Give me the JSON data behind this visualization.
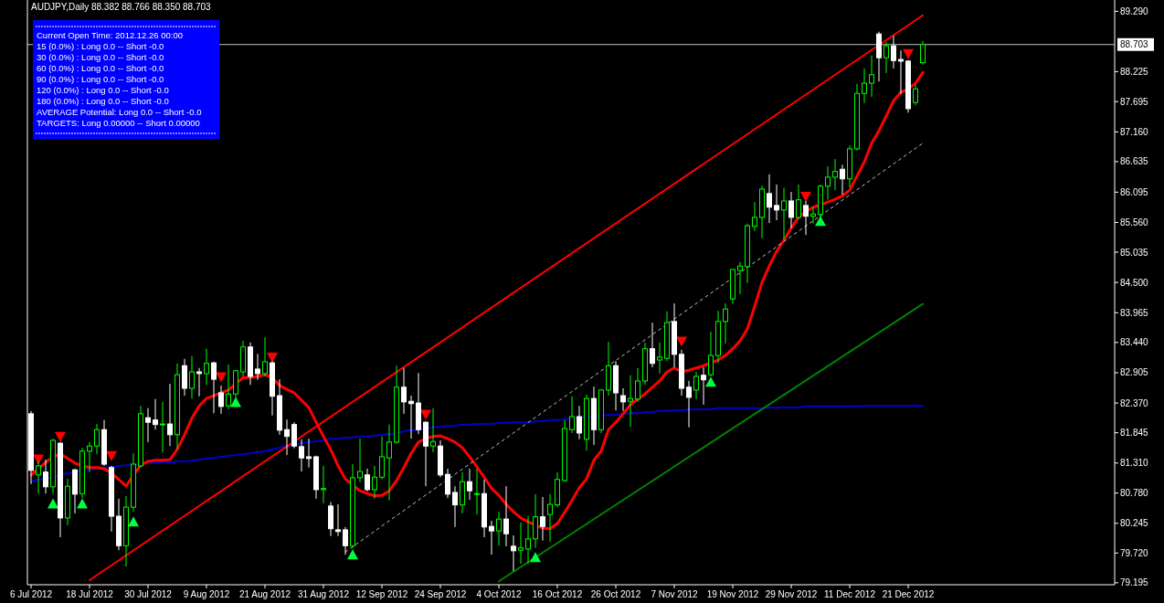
{
  "chart_data": {
    "type": "candlestick",
    "title": "AUDJPY,Daily  88.382 88.766 88.350 88.703",
    "categories": [
      "6 Jul 2012",
      null,
      null,
      null,
      null,
      null,
      null,
      null,
      "18 Jul 2012",
      null,
      null,
      null,
      null,
      null,
      null,
      null,
      "30 Jul 2012",
      null,
      null,
      null,
      null,
      null,
      null,
      null,
      "9 Aug 2012",
      null,
      null,
      null,
      null,
      null,
      null,
      null,
      "21 Aug 2012",
      null,
      null,
      null,
      null,
      null,
      null,
      null,
      "31 Aug 2012",
      null,
      null,
      null,
      null,
      null,
      null,
      null,
      "12 Sep 2012",
      null,
      null,
      null,
      null,
      null,
      null,
      null,
      "24 Sep 2012",
      null,
      null,
      null,
      null,
      null,
      null,
      null,
      "4 Oct 2012",
      null,
      null,
      null,
      null,
      null,
      null,
      null,
      "16 Oct 2012",
      null,
      null,
      null,
      null,
      null,
      null,
      null,
      "26 Oct 2012",
      null,
      null,
      null,
      null,
      null,
      null,
      null,
      "7 Nov 2012",
      null,
      null,
      null,
      null,
      null,
      null,
      null,
      "19 Nov 2012",
      null,
      null,
      null,
      null,
      null,
      null,
      null,
      "29 Nov 2012",
      null,
      null,
      null,
      null,
      null,
      null,
      null,
      "11 Dec 2012",
      null,
      null,
      null,
      null,
      null,
      null,
      null,
      "21 Dec 2012",
      null,
      null
    ],
    "ohlc": [
      [
        82.18,
        82.23,
        80.94,
        81.18
      ],
      [
        81.1,
        81.34,
        80.77,
        81.26
      ],
      [
        81.15,
        81.37,
        80.77,
        80.89
      ],
      [
        80.89,
        81.74,
        80.77,
        81.71
      ],
      [
        81.66,
        81.68,
        80.0,
        80.34
      ],
      [
        80.34,
        81.03,
        80.21,
        80.9
      ],
      [
        81.19,
        81.21,
        80.42,
        80.76
      ],
      [
        80.77,
        81.58,
        80.69,
        81.52
      ],
      [
        81.52,
        81.68,
        81.15,
        81.61
      ],
      [
        81.61,
        82.0,
        81.47,
        81.9
      ],
      [
        81.9,
        82.07,
        81.26,
        81.29
      ],
      [
        81.23,
        81.26,
        80.1,
        80.37
      ],
      [
        80.37,
        80.68,
        79.77,
        79.85
      ],
      [
        79.85,
        80.73,
        79.48,
        80.53
      ],
      [
        80.53,
        81.48,
        80.45,
        81.29
      ],
      [
        81.26,
        82.32,
        81.23,
        82.18
      ],
      [
        82.11,
        82.28,
        81.68,
        82.03
      ],
      [
        82.07,
        82.44,
        81.9,
        81.99
      ],
      [
        81.99,
        82.39,
        81.5,
        82.0
      ],
      [
        82.0,
        82.71,
        81.61,
        81.81
      ],
      [
        81.81,
        83.07,
        81.55,
        82.87
      ],
      [
        83.03,
        83.15,
        82.5,
        82.63
      ],
      [
        82.63,
        83.2,
        82.45,
        82.92
      ],
      [
        82.92,
        82.99,
        82.49,
        82.89
      ],
      [
        82.89,
        83.33,
        82.69,
        83.07
      ],
      [
        83.08,
        83.1,
        82.19,
        82.79
      ],
      [
        82.55,
        82.68,
        82.18,
        82.31
      ],
      [
        82.32,
        83.05,
        82.26,
        82.53
      ],
      [
        82.53,
        82.95,
        82.45,
        82.94
      ],
      [
        82.92,
        83.47,
        82.84,
        83.36
      ],
      [
        83.36,
        83.44,
        82.69,
        82.84
      ],
      [
        82.97,
        83.24,
        82.78,
        82.89
      ],
      [
        82.89,
        83.53,
        82.84,
        83.1
      ],
      [
        83.08,
        83.11,
        82.15,
        82.49
      ],
      [
        82.5,
        82.79,
        81.81,
        81.89
      ],
      [
        81.9,
        82.08,
        81.45,
        81.78
      ],
      [
        81.99,
        82.03,
        81.57,
        81.61
      ],
      [
        81.6,
        81.73,
        81.16,
        81.4
      ],
      [
        81.42,
        81.74,
        81.23,
        81.39
      ],
      [
        81.42,
        81.44,
        80.68,
        80.84
      ],
      [
        80.84,
        81.26,
        80.6,
        80.86
      ],
      [
        80.55,
        80.62,
        80.02,
        80.15
      ],
      [
        80.13,
        80.58,
        80.02,
        80.1
      ],
      [
        80.13,
        80.18,
        79.69,
        79.85
      ],
      [
        79.85,
        81.29,
        79.81,
        81.05
      ],
      [
        81.05,
        81.74,
        80.97,
        81.16
      ],
      [
        81.1,
        81.21,
        80.81,
        80.84
      ],
      [
        80.84,
        81.26,
        80.68,
        81.06
      ],
      [
        81.06,
        81.78,
        81.02,
        81.42
      ],
      [
        81.4,
        81.99,
        80.65,
        81.68
      ],
      [
        81.68,
        83.03,
        81.65,
        82.65
      ],
      [
        82.65,
        82.99,
        82.18,
        82.39
      ],
      [
        82.4,
        82.5,
        81.74,
        82.36
      ],
      [
        82.37,
        82.9,
        81.82,
        81.9
      ],
      [
        82.03,
        82.05,
        80.9,
        81.61
      ],
      [
        81.61,
        82.28,
        81.5,
        81.69
      ],
      [
        81.61,
        81.71,
        81.06,
        81.1
      ],
      [
        81.11,
        81.21,
        80.69,
        80.76
      ],
      [
        80.79,
        80.9,
        80.18,
        80.57
      ],
      [
        80.57,
        81.15,
        80.42,
        80.98
      ],
      [
        80.98,
        81.21,
        80.66,
        80.82
      ],
      [
        80.76,
        81.21,
        80.4,
        80.77
      ],
      [
        80.77,
        81.02,
        80.0,
        80.18
      ],
      [
        80.19,
        80.29,
        79.69,
        80.11
      ],
      [
        80.11,
        80.45,
        79.85,
        80.32
      ],
      [
        80.32,
        80.9,
        79.84,
        80.06
      ],
      [
        79.84,
        80.03,
        79.4,
        79.76
      ],
      [
        79.77,
        80.26,
        79.53,
        79.81
      ],
      [
        79.79,
        80.37,
        79.53,
        79.97
      ],
      [
        79.97,
        80.76,
        79.81,
        80.36
      ],
      [
        80.36,
        80.71,
        79.94,
        80.19
      ],
      [
        80.4,
        80.76,
        79.92,
        80.58
      ],
      [
        80.57,
        81.15,
        80.53,
        81.02
      ],
      [
        81.0,
        82.07,
        80.98,
        81.92
      ],
      [
        81.9,
        82.49,
        81.84,
        82.13
      ],
      [
        82.13,
        82.32,
        81.73,
        81.84
      ],
      [
        81.73,
        82.52,
        81.53,
        82.45
      ],
      [
        82.45,
        82.66,
        81.63,
        81.9
      ],
      [
        81.9,
        82.61,
        81.84,
        82.6
      ],
      [
        82.6,
        83.45,
        82.5,
        83.03
      ],
      [
        83.03,
        83.11,
        82.24,
        82.55
      ],
      [
        82.5,
        82.63,
        82.23,
        82.39
      ],
      [
        82.4,
        82.86,
        81.95,
        82.45
      ],
      [
        82.44,
        82.99,
        82.39,
        82.76
      ],
      [
        82.76,
        83.44,
        82.69,
        83.33
      ],
      [
        83.33,
        83.79,
        83.0,
        83.07
      ],
      [
        83.13,
        83.44,
        82.89,
        83.18
      ],
      [
        83.16,
        83.99,
        83.11,
        83.79
      ],
      [
        83.81,
        84.13,
        83.0,
        83.23
      ],
      [
        83.23,
        83.31,
        82.5,
        82.63
      ],
      [
        82.65,
        82.76,
        81.94,
        82.47
      ],
      [
        82.6,
        82.92,
        82.44,
        82.84
      ],
      [
        82.86,
        83.0,
        82.34,
        82.78
      ],
      [
        82.87,
        83.63,
        82.84,
        83.21
      ],
      [
        83.21,
        84.0,
        83.08,
        83.81
      ],
      [
        83.81,
        84.13,
        83.42,
        84.03
      ],
      [
        84.21,
        84.73,
        84.12,
        84.73
      ],
      [
        84.71,
        84.86,
        84.29,
        84.79
      ],
      [
        84.78,
        85.54,
        84.49,
        85.5
      ],
      [
        85.49,
        85.92,
        85.41,
        85.65
      ],
      [
        85.65,
        86.21,
        85.28,
        86.15
      ],
      [
        86.07,
        86.41,
        85.55,
        85.83
      ],
      [
        85.86,
        86.23,
        85.6,
        85.78
      ],
      [
        85.78,
        86.17,
        85.26,
        85.94
      ],
      [
        85.94,
        86.1,
        85.46,
        85.65
      ],
      [
        85.65,
        86.23,
        85.62,
        85.96
      ],
      [
        85.86,
        85.94,
        85.34,
        85.67
      ],
      [
        85.67,
        85.83,
        85.54,
        85.71
      ],
      [
        85.7,
        86.23,
        85.54,
        86.2
      ],
      [
        86.2,
        86.55,
        85.96,
        86.36
      ],
      [
        86.36,
        86.68,
        86.13,
        86.46
      ],
      [
        86.5,
        86.58,
        86.05,
        86.33
      ],
      [
        86.33,
        86.92,
        86.18,
        86.86
      ],
      [
        86.86,
        88.01,
        86.83,
        87.84
      ],
      [
        87.84,
        88.28,
        87.67,
        88.02
      ],
      [
        88.02,
        88.51,
        87.78,
        88.17
      ],
      [
        88.89,
        88.93,
        88.05,
        88.47
      ],
      [
        88.47,
        88.75,
        88.2,
        88.68
      ],
      [
        88.68,
        88.86,
        88.28,
        88.42
      ],
      [
        88.44,
        88.6,
        87.83,
        88.41
      ],
      [
        88.41,
        88.43,
        87.5,
        87.57
      ],
      [
        87.68,
        87.99,
        87.63,
        87.92
      ],
      [
        88.382,
        88.766,
        88.35,
        88.703
      ]
    ],
    "series": [
      {
        "type": "line",
        "color": "#0000cd",
        "values": [
          80.98,
          81.02,
          81.03,
          81.06,
          81.1,
          81.13,
          81.15,
          81.18,
          81.19,
          81.21,
          81.23,
          81.24,
          81.26,
          81.27,
          81.29,
          81.29,
          81.31,
          81.31,
          81.32,
          81.32,
          81.34,
          81.34,
          81.35,
          81.37,
          81.39,
          81.4,
          81.42,
          81.44,
          81.45,
          81.47,
          81.48,
          81.5,
          81.52,
          81.55,
          81.58,
          81.61,
          81.63,
          81.66,
          81.68,
          81.69,
          81.71,
          81.74,
          81.74,
          81.76,
          81.76,
          81.78,
          81.78,
          81.79,
          81.81,
          81.82,
          81.84,
          81.87,
          81.89,
          81.9,
          81.92,
          81.94,
          81.95,
          81.97,
          81.97,
          81.99,
          81.99,
          82.0,
          82.0,
          82.0,
          82.02,
          82.02,
          82.03,
          82.03,
          82.03,
          82.05,
          82.05,
          82.07,
          82.07,
          82.08,
          82.1,
          82.11,
          82.13,
          82.13,
          82.15,
          82.16,
          82.16,
          82.18,
          82.19,
          82.19,
          82.21,
          82.21,
          82.23,
          82.23,
          82.24,
          82.24,
          82.26,
          82.26,
          82.26,
          82.26,
          82.28,
          82.28,
          82.28,
          82.28,
          82.28,
          82.28,
          82.28,
          82.29,
          82.29,
          82.29,
          82.29,
          82.29,
          82.31,
          82.31,
          82.31,
          82.31,
          82.31,
          82.31,
          82.31,
          82.31,
          82.32,
          82.32,
          82.32,
          82.32,
          82.32,
          82.32,
          82.32,
          82.32,
          82.32
        ]
      },
      {
        "type": "line",
        "color": "#ff0000",
        "values": [
          81.1,
          81.21,
          81.32,
          81.42,
          81.47,
          81.39,
          81.31,
          81.26,
          81.23,
          81.23,
          81.21,
          81.13,
          81.02,
          80.9,
          81.1,
          81.27,
          81.34,
          81.36,
          81.36,
          81.37,
          81.55,
          81.81,
          82.1,
          82.32,
          82.45,
          82.5,
          82.55,
          82.6,
          82.71,
          82.82,
          82.82,
          82.84,
          82.87,
          82.82,
          82.68,
          82.61,
          82.55,
          82.42,
          82.29,
          82.03,
          81.78,
          81.55,
          81.26,
          81.03,
          80.92,
          80.82,
          80.77,
          80.73,
          80.74,
          80.82,
          81.0,
          81.23,
          81.48,
          81.68,
          81.74,
          81.78,
          81.79,
          81.74,
          81.68,
          81.58,
          81.42,
          81.24,
          81.06,
          80.86,
          80.74,
          80.58,
          80.45,
          80.34,
          80.27,
          80.21,
          80.16,
          80.15,
          80.24,
          80.44,
          80.65,
          80.87,
          81.03,
          81.36,
          81.52,
          81.9,
          82.03,
          82.18,
          82.34,
          82.44,
          82.53,
          82.65,
          82.76,
          82.92,
          82.99,
          82.92,
          82.95,
          82.99,
          83.03,
          83.08,
          83.13,
          83.21,
          83.33,
          83.47,
          83.68,
          84.08,
          84.5,
          84.79,
          85.05,
          85.25,
          85.46,
          85.65,
          85.75,
          85.83,
          85.87,
          85.92,
          85.97,
          86.03,
          86.13,
          86.38,
          86.63,
          86.96,
          87.18,
          87.44,
          87.71,
          87.86,
          87.92,
          88.02,
          88.21
        ]
      },
      {
        "type": "line",
        "color": "#ff0000",
        "values": [
          null,
          null,
          null,
          null,
          null,
          null,
          null,
          null,
          79.24,
          null,
          null,
          null,
          null,
          null,
          null,
          null,
          null,
          null,
          null,
          null,
          null,
          null,
          null,
          null,
          null,
          null,
          null,
          null,
          null,
          null,
          null,
          null,
          null,
          null,
          null,
          null,
          null,
          null,
          null,
          null,
          null,
          null,
          null,
          null,
          null,
          null,
          null,
          null,
          null,
          null,
          null,
          null,
          null,
          null,
          null,
          null,
          null,
          null,
          null,
          null,
          null,
          null,
          null,
          null,
          null,
          null,
          null,
          null,
          null,
          null,
          null,
          null,
          null,
          null,
          null,
          null,
          null,
          null,
          null,
          null,
          null,
          null,
          null,
          null,
          null,
          null,
          null,
          null,
          null,
          null,
          null,
          null,
          null,
          null,
          null,
          null,
          null,
          null,
          null,
          null,
          null,
          null,
          null,
          null,
          null,
          null,
          null,
          null,
          null,
          null,
          null,
          null,
          null,
          null,
          null,
          null,
          null,
          null,
          null,
          null,
          null,
          null,
          89.22
        ]
      },
      {
        "type": "line",
        "color": "#c0c0c0",
        "line_style": "dashed",
        "values": [
          null,
          null,
          null,
          null,
          null,
          null,
          null,
          null,
          null,
          null,
          null,
          null,
          null,
          null,
          null,
          null,
          null,
          null,
          null,
          null,
          null,
          null,
          null,
          null,
          null,
          null,
          null,
          null,
          null,
          null,
          null,
          null,
          null,
          null,
          null,
          null,
          null,
          null,
          null,
          null,
          null,
          null,
          null,
          79.74,
          null,
          null,
          null,
          null,
          null,
          null,
          null,
          null,
          null,
          null,
          null,
          null,
          null,
          null,
          null,
          null,
          null,
          null,
          null,
          null,
          null,
          null,
          null,
          null,
          null,
          null,
          null,
          null,
          null,
          null,
          null,
          null,
          null,
          null,
          null,
          null,
          null,
          null,
          null,
          null,
          null,
          null,
          null,
          null,
          null,
          null,
          null,
          null,
          null,
          null,
          null,
          null,
          null,
          null,
          null,
          null,
          null,
          null,
          null,
          null,
          null,
          null,
          null,
          null,
          null,
          null,
          null,
          null,
          null,
          null,
          null,
          null,
          null,
          null,
          null,
          null,
          null,
          null,
          86.96
        ]
      },
      {
        "type": "line",
        "color": "#008000",
        "values": [
          null,
          null,
          null,
          null,
          null,
          null,
          null,
          null,
          null,
          null,
          null,
          null,
          null,
          null,
          null,
          null,
          null,
          null,
          null,
          null,
          null,
          null,
          null,
          null,
          null,
          null,
          null,
          null,
          null,
          null,
          null,
          null,
          null,
          null,
          null,
          null,
          null,
          null,
          null,
          null,
          null,
          null,
          null,
          null,
          null,
          null,
          null,
          null,
          null,
          null,
          null,
          null,
          null,
          null,
          null,
          null,
          null,
          null,
          null,
          null,
          null,
          null,
          null,
          null,
          79.22,
          null,
          null,
          null,
          null,
          null,
          null,
          null,
          null,
          null,
          null,
          null,
          null,
          null,
          null,
          null,
          null,
          null,
          null,
          null,
          null,
          null,
          null,
          null,
          null,
          null,
          null,
          null,
          null,
          null,
          null,
          null,
          null,
          null,
          null,
          null,
          null,
          null,
          null,
          null,
          null,
          null,
          null,
          null,
          null,
          null,
          null,
          null,
          null,
          null,
          null,
          null,
          null,
          null,
          null,
          null,
          null,
          null,
          84.12
        ]
      },
      {
        "type": "scatter",
        "color": "#ff0000",
        "marker": "triangle",
        "values": [
          null,
          81.38,
          null,
          null,
          81.78,
          null,
          null,
          null,
          null,
          null,
          null,
          81.44,
          null,
          null,
          null,
          null,
          null,
          null,
          null,
          null,
          null,
          null,
          null,
          null,
          null,
          null,
          82.83,
          null,
          null,
          null,
          null,
          null,
          null,
          83.18,
          null,
          null,
          null,
          null,
          null,
          null,
          null,
          null,
          null,
          null,
          null,
          null,
          null,
          null,
          null,
          null,
          null,
          null,
          null,
          null,
          82.17,
          null,
          null,
          null,
          null,
          null,
          null,
          null,
          null,
          null,
          null,
          null,
          null,
          null,
          null,
          null,
          null,
          null,
          null,
          null,
          null,
          null,
          null,
          null,
          null,
          null,
          null,
          null,
          null,
          null,
          null,
          null,
          null,
          null,
          null,
          83.46,
          null,
          null,
          null,
          null,
          null,
          null,
          null,
          null,
          null,
          null,
          null,
          null,
          null,
          null,
          null,
          null,
          86.02,
          null,
          null,
          null,
          null,
          null,
          null,
          null,
          null,
          null,
          null,
          null,
          null,
          null,
          88.54,
          null,
          null
        ]
      },
      {
        "type": "scatter",
        "color": "#00ff40",
        "marker": "triangle",
        "values": [
          null,
          null,
          null,
          80.59,
          null,
          null,
          null,
          80.59,
          null,
          null,
          null,
          null,
          null,
          null,
          80.27,
          null,
          null,
          null,
          null,
          null,
          null,
          null,
          null,
          null,
          null,
          null,
          null,
          null,
          82.38,
          null,
          null,
          null,
          null,
          null,
          null,
          null,
          null,
          null,
          null,
          null,
          null,
          null,
          null,
          null,
          79.69,
          null,
          null,
          null,
          null,
          null,
          null,
          null,
          null,
          null,
          null,
          null,
          null,
          null,
          null,
          null,
          null,
          null,
          null,
          null,
          null,
          null,
          null,
          null,
          null,
          79.64,
          null,
          null,
          null,
          null,
          null,
          null,
          null,
          null,
          null,
          null,
          null,
          null,
          null,
          null,
          null,
          null,
          null,
          null,
          null,
          null,
          null,
          null,
          null,
          82.74,
          null,
          null,
          null,
          null,
          null,
          null,
          null,
          null,
          null,
          null,
          null,
          null,
          null,
          null,
          85.58,
          null,
          null,
          null,
          null,
          null,
          null,
          null,
          null,
          null,
          null,
          null,
          null,
          null,
          null
        ]
      }
    ],
    "ylim": [
      79.16,
      89.49
    ],
    "yticks": [
      {
        "value": 79.195,
        "label": "79.195"
      },
      {
        "value": 79.72,
        "label": "79.720"
      },
      {
        "value": 80.245,
        "label": "80.245"
      },
      {
        "value": 80.78,
        "label": "80.780"
      },
      {
        "value": 81.31,
        "label": "81.310"
      },
      {
        "value": 81.845,
        "label": "81.845"
      },
      {
        "value": 82.37,
        "label": "82.370"
      },
      {
        "value": 82.905,
        "label": "82.905"
      },
      {
        "value": 83.44,
        "label": "83.440"
      },
      {
        "value": 83.965,
        "label": "83.965"
      },
      {
        "value": 84.5,
        "label": "84.500"
      },
      {
        "value": 85.035,
        "label": "85.035"
      },
      {
        "value": 85.56,
        "label": "85.560"
      },
      {
        "value": 86.095,
        "label": "86.095"
      },
      {
        "value": 86.635,
        "label": "86.635"
      },
      {
        "value": 87.16,
        "label": "87.160"
      },
      {
        "value": 87.695,
        "label": "87.695"
      },
      {
        "value": 88.225,
        "label": "88.225"
      },
      {
        "value": 89.29,
        "label": "89.290"
      }
    ],
    "ref_lines": [
      {
        "axis": "y",
        "value": 88.703,
        "label": "88.703",
        "color": "#c0c0c0"
      }
    ],
    "annotations": [
      "Current Open Time: 2012.12.26 00:00",
      "15 (0.0%) : Long 0.0 -- Short -0.0",
      "30 (0.0%) : Long 0.0 -- Short -0.0",
      "60 (0.0%) : Long 0.0 -- Short -0.0",
      "90 (0.0%) : Long 0.0 -- Short -0.0",
      "120 (0.0%) : Long 0.0 -- Short -0.0",
      "180 (0.0%) : Long 0.0 -- Short -0.0",
      "AVERAGE Potential: Long 0.0 -- Short -0.0",
      "TARGETS: Long 0.00000 -- Short 0.00000"
    ]
  }
}
